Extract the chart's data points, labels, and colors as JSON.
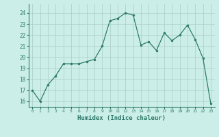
{
  "x": [
    0,
    1,
    2,
    3,
    4,
    5,
    6,
    7,
    8,
    9,
    10,
    11,
    12,
    13,
    14,
    15,
    16,
    17,
    18,
    19,
    20,
    21,
    22,
    23
  ],
  "y": [
    17.0,
    16.0,
    17.5,
    18.3,
    19.4,
    19.4,
    19.4,
    19.6,
    19.8,
    21.0,
    23.3,
    23.5,
    24.0,
    23.8,
    21.1,
    21.4,
    20.6,
    22.2,
    21.5,
    22.0,
    22.9,
    21.6,
    19.9,
    15.8
  ],
  "xlabel": "Humidex (Indice chaleur)",
  "ylim": [
    15.5,
    24.8
  ],
  "xlim": [
    -0.5,
    23.5
  ],
  "yticks": [
    16,
    17,
    18,
    19,
    20,
    21,
    22,
    23,
    24
  ],
  "xticks": [
    0,
    1,
    2,
    3,
    4,
    5,
    6,
    7,
    8,
    9,
    10,
    11,
    12,
    13,
    14,
    15,
    16,
    17,
    18,
    19,
    20,
    21,
    22,
    23
  ],
  "line_color": "#2d7a6a",
  "marker_color": "#2d7a6a",
  "bg_color": "#cceee8",
  "grid_color": "#aaccc6",
  "xlabel_color": "#2d7a6a",
  "tick_color": "#2d7a6a",
  "spine_color": "#2d7a6a"
}
